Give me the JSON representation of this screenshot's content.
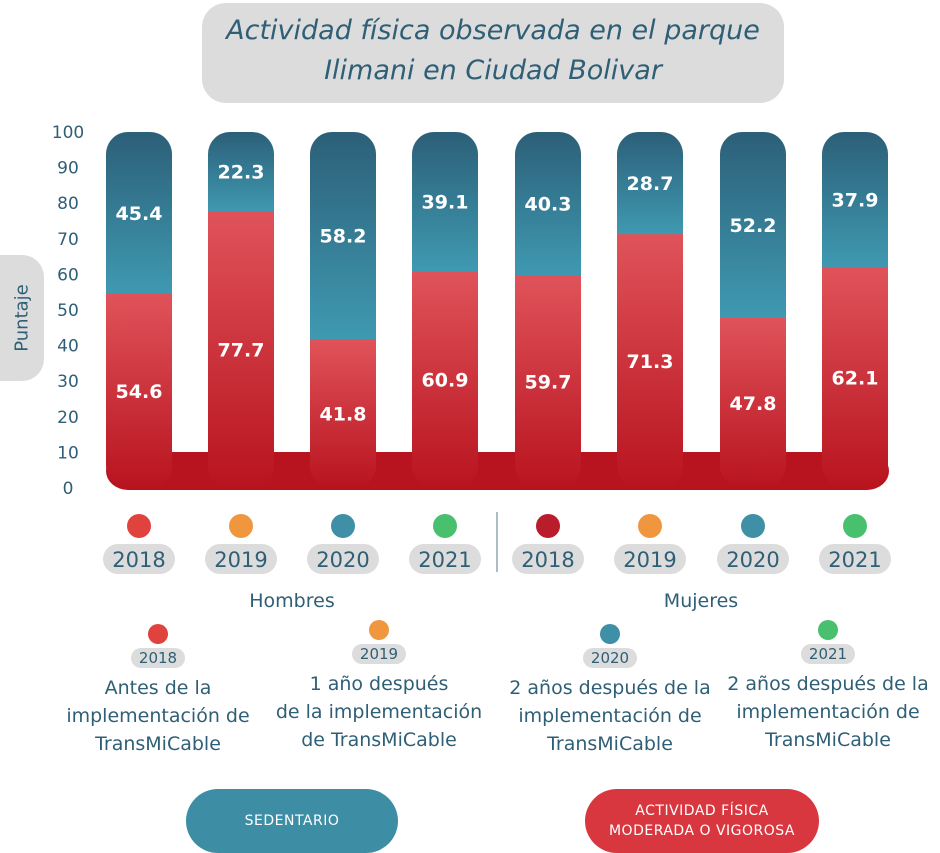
{
  "title": [
    "Actividad física observada en el parque",
    "Ilimani en Ciudad Bolivar"
  ],
  "chart_data": {
    "type": "bar",
    "stacked": true,
    "ylabel": "Puntaje",
    "ylim": [
      0,
      100
    ],
    "yticks": [
      0,
      10,
      20,
      30,
      40,
      50,
      60,
      70,
      80,
      90,
      100
    ],
    "groups": [
      "Hombres",
      "Mujeres"
    ],
    "categories": [
      "2018",
      "2019",
      "2020",
      "2021",
      "2018",
      "2019",
      "2020",
      "2021"
    ],
    "series": [
      {
        "name": "ACTIVIDAD FÍSICA MODERADA O VIGOROSA",
        "values": [
          54.6,
          77.7,
          41.8,
          60.9,
          59.7,
          71.3,
          47.8,
          62.1
        ]
      },
      {
        "name": "SEDENTARIO",
        "values": [
          45.4,
          22.3,
          58.2,
          39.1,
          40.3,
          28.7,
          52.2,
          37.9
        ]
      }
    ],
    "category_dot_colors": [
      "#e0433e",
      "#f0963f",
      "#3f8fa6",
      "#49c06e",
      "#b91c2a",
      "#f0963f",
      "#3f8fa6",
      "#49c06e"
    ]
  },
  "legend": [
    {
      "year": "2018",
      "color": "#e0433e",
      "desc": "Antes de la\nimplementación de\nTransMiCable"
    },
    {
      "year": "2019",
      "color": "#f0963f",
      "desc": "1 año después\nde la implementación\nde TransMiCable"
    },
    {
      "year": "2020",
      "color": "#3f8fa6",
      "desc": "2 años después de la\nimplementación de\nTransMiCable"
    },
    {
      "year": "2021",
      "color": "#49c06e",
      "desc": "2 años después de la\nimplementación de\nTransMiCable"
    }
  ],
  "buttons": {
    "sedentary": "SEDENTARIO",
    "active": "ACTIVIDAD FÍSICA\nMODERADA O VIGOROSA"
  },
  "colors": {
    "sedentary_top": "#2c5f78",
    "sedentary_bottom": "#3f9ab2",
    "active_top": "#e0535a",
    "active_bottom": "#b8141f"
  }
}
